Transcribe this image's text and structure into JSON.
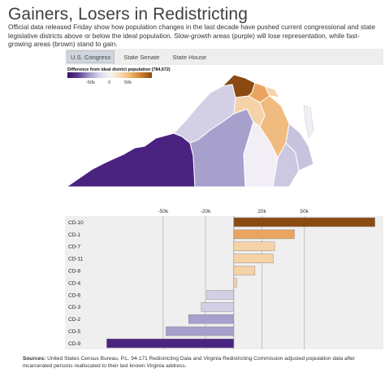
{
  "header": {
    "title": "Gainers, Losers in Redistricting",
    "subtitle": "Official data released Friday show how population changes in the last decade have pushed current congressional and state legislative districts above or below the ideal population. Slow-growth areas (purple) will lose representation, while fast-growing areas (brown) stand to gain."
  },
  "tabs": [
    {
      "label": "U.S. Congress",
      "active": true
    },
    {
      "label": "State Senate",
      "active": false
    },
    {
      "label": "State House",
      "active": false
    }
  ],
  "legend": {
    "title": "Difference from ideal district population (784,672)",
    "ticks": [
      "-50k",
      "0",
      "50k"
    ]
  },
  "colors": {
    "gain_dark": "#8a4a12",
    "gain_mid": "#e9a55f",
    "gain_light": "#f6d2a8",
    "loss_light": "#d3d0e6",
    "loss_mid": "#a79fcc",
    "loss_dark": "#4a2381",
    "chart_bg": "#efefef",
    "map_stroke": "#ffffff"
  },
  "chart_data": {
    "type": "bar",
    "orientation": "horizontal",
    "categories": [
      "CD-10",
      "CD-1",
      "CD-7",
      "CD-11",
      "CD-8",
      "CD-4",
      "CD-6",
      "CD-3",
      "CD-2",
      "CD-5",
      "CD-9"
    ],
    "values": [
      100000,
      43000,
      29000,
      28000,
      15000,
      2000,
      -19000,
      -23000,
      -32000,
      -48000,
      -90000
    ],
    "x_tick_labels_top": [
      "-50k",
      "-20k",
      "20k",
      "50k"
    ],
    "x_tick_values_top": [
      -50000,
      -20000,
      20000,
      50000
    ],
    "x_gridlines": [
      -50000,
      -20000,
      20000,
      50000
    ],
    "xlim": [
      -100000,
      106000
    ],
    "xlabel": "",
    "ylabel": "",
    "grid": true
  },
  "sources": {
    "label": "Sources:",
    "text": "United States Census Bureau, P.L. 94-171 Redistricting Data and Virginia Redistricting Commission adjusted population data after incarcerated persons reallocated to their last known Virginia address."
  }
}
